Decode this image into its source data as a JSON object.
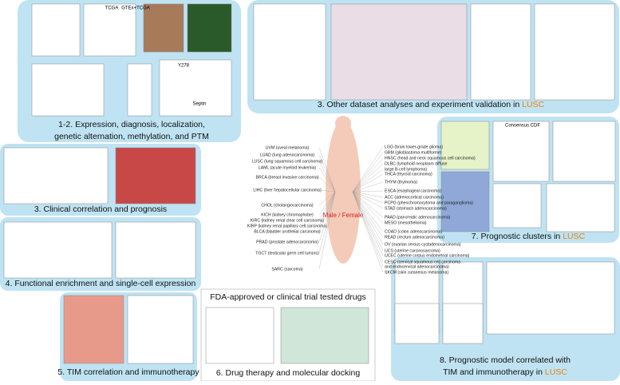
{
  "panels": [
    {
      "lines": [
        [
          "1-2. Expression, diagnosis, localization,"
        ],
        [
          "genetic alternation, methylation, and PTM"
        ]
      ]
    },
    {
      "lines": [
        [
          "3. Other dataset analyses and experiment validation in ",
          "LUSC"
        ]
      ]
    },
    {
      "lines": [
        [
          "3. Clinical correlation and prognosis"
        ]
      ]
    },
    {
      "lines": [
        [
          "4. Functional enrichment and single-cell expression"
        ]
      ]
    },
    {
      "lines": [
        [
          "5. TIM correlation and immunotherapy"
        ]
      ]
    },
    {
      "lines": [
        [
          "6. Drug therapy and molecular docking"
        ]
      ]
    },
    {
      "lines": [
        [
          "7. Prognostic clusters in ",
          "LUSC"
        ]
      ]
    },
    {
      "lines": [
        [
          "8. Prognostic model correlated with"
        ],
        [
          "TIM and immunotherapy in ",
          "LUSC"
        ]
      ]
    }
  ],
  "drugs_title": "FDA-approved or clinical trial tested drugs",
  "mini_labels": [
    "Septin",
    "Y278",
    "TCGA",
    "GTEx+TCGA",
    "Consensus CDF"
  ],
  "sex": [
    "Male",
    "Female"
  ],
  "cancers_left": [
    "UVM (uveal melanoma)",
    "LUAD (lung adenocarcinoma)",
    "LUSC (lung squamous cell carcinoma)",
    "LAML (acute myeloid leukemia)",
    "BRCA (breast invasive carcinoma)",
    "LIHC (liver hepatocellular carcinoma)",
    "CHOL (cholangiocarcinoma)",
    "KICH (kidney chromophobe)",
    "KIRC (kidney renal clear cell carcinoma)",
    "KIRP (kidney renal papillary cell carcinoma)",
    "BLCA (bladder urothelial carcinoma)",
    "PRAD (prostate adenocarcinoma)",
    "TGCT (testicular germ cell tumors)",
    "SARC (sarcoma)"
  ],
  "cancers_right": [
    "LGG (brain lower-grade glioma)",
    "GBM (glioblastoma multiforme)",
    "HNSC (head and neck squamous cell carcinoma)",
    "DLBC (lymphoid neoplasm diffuse",
    "large B-cell lymphoma)",
    "THCA (thyroid carcinoma)",
    "THYM (thymoma)",
    "ESCA (esophageal carcinoma)",
    "ACC (adrenocortical carcinoma)",
    "PCPG (pheochromocytoma and paraganglioma)",
    "STAD (stomach adenocarcinoma)",
    "PAAD (pancreatic adenocarcinoma)",
    "MESO (mesothelioma)",
    "COAD (colon adenocarcinoma)",
    "READ (rectum adenocarcinoma)",
    "OV (ovarian serous cystadenocarcinoma)",
    "UCS (uterine carcinosarcoma)",
    "UCEC (uterine corpus endometrial carcinoma)",
    "CESC (cervical squamous cell carcinoma",
    "and endocervical adenocarcinoma)",
    "SKCM (skin cutaneous melanoma)"
  ]
}
